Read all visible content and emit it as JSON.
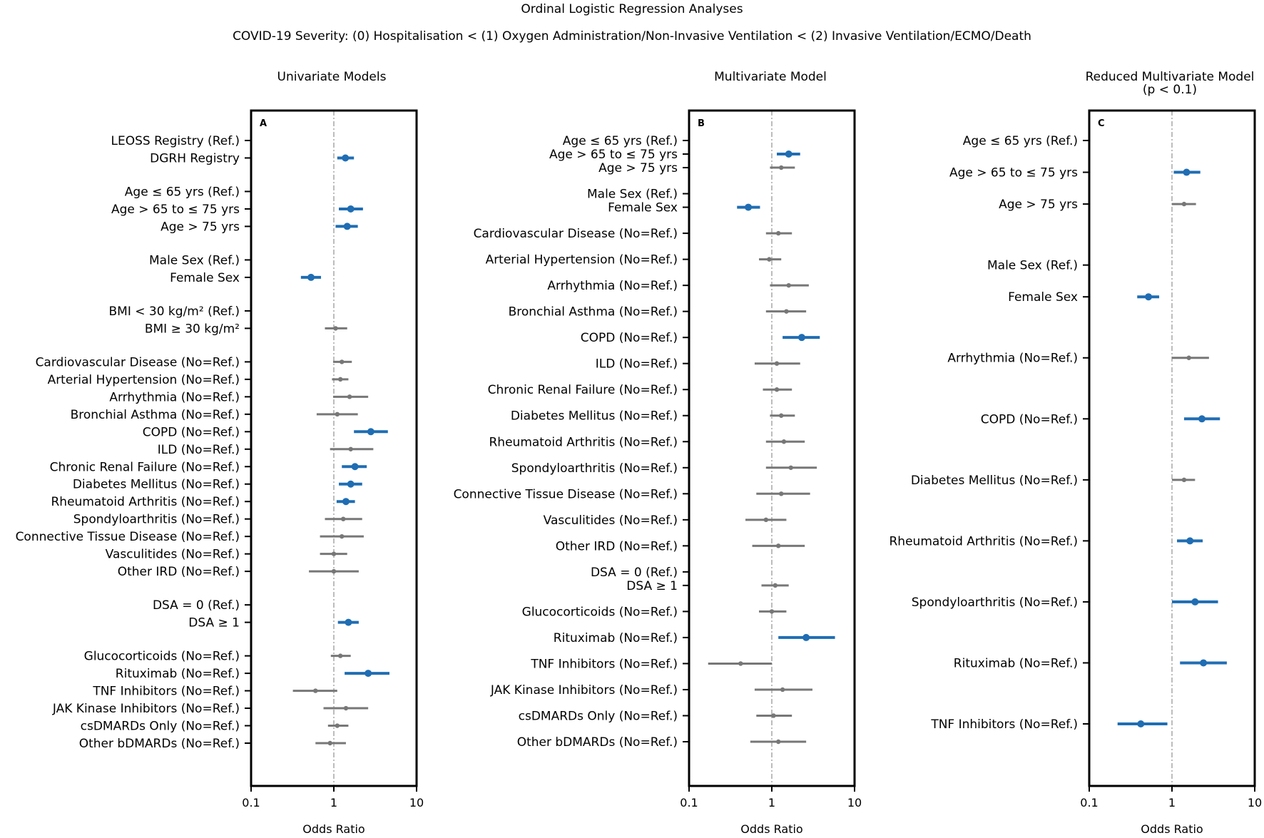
{
  "figure": {
    "title": "Ordinal Logistic Regression Analyses",
    "subtitle": "COVID-19 Severity:   (0) Hospitalisation < (1) Oxygen Administration/Non-Invasive Ventilation < (2) Invasive Ventilation/ECMO/Death"
  },
  "colors": {
    "significant": "#1f6db3",
    "nonsignificant": "#777777",
    "axis": "#000000",
    "refline": "#999999"
  },
  "chart_data": [
    {
      "type": "forest",
      "panel": "A",
      "title": "Univariate Models",
      "xlabel": "Odds Ratio",
      "xscale": "log",
      "xlim": [
        0.1,
        10
      ],
      "xticks": [
        "0.1",
        "1",
        "10"
      ],
      "reference_line": 1,
      "rows": [
        {
          "label": "LEOSS Registry (Ref.)",
          "ref": true
        },
        {
          "label": "DGRH Registry",
          "or": 1.38,
          "lo": 1.1,
          "hi": 1.75,
          "sig": true
        },
        {
          "gap": true
        },
        {
          "label": "Age ≤ 65 yrs (Ref.)",
          "ref": true
        },
        {
          "label": "Age > 65 to ≤ 75 yrs",
          "or": 1.6,
          "lo": 1.15,
          "hi": 2.25,
          "sig": true
        },
        {
          "label": "Age > 75 yrs",
          "or": 1.45,
          "lo": 1.05,
          "hi": 1.95,
          "sig": true
        },
        {
          "gap": true
        },
        {
          "label": "Male Sex (Ref.)",
          "ref": true
        },
        {
          "label": "Female Sex",
          "or": 0.53,
          "lo": 0.4,
          "hi": 0.7,
          "sig": true
        },
        {
          "gap": true
        },
        {
          "label": "BMI < 30 kg/m² (Ref.)",
          "ref": true
        },
        {
          "label": "BMI ≥ 30 kg/m²",
          "or": 1.05,
          "lo": 0.78,
          "hi": 1.45,
          "sig": false
        },
        {
          "gap": true
        },
        {
          "label": "Cardiovascular Disease (No=Ref.)",
          "or": 1.25,
          "lo": 0.98,
          "hi": 1.65,
          "sig": false
        },
        {
          "label": "Arterial Hypertension (No=Ref.)",
          "or": 1.2,
          "lo": 0.95,
          "hi": 1.5,
          "sig": false
        },
        {
          "label": "Arrhythmia (No=Ref.)",
          "or": 1.55,
          "lo": 0.98,
          "hi": 2.6,
          "sig": false
        },
        {
          "label": "Bronchial Asthma (No=Ref.)",
          "or": 1.1,
          "lo": 0.62,
          "hi": 1.95,
          "sig": false
        },
        {
          "label": "COPD (No=Ref.)",
          "or": 2.8,
          "lo": 1.75,
          "hi": 4.5,
          "sig": true
        },
        {
          "label": "ILD (No=Ref.)",
          "or": 1.6,
          "lo": 0.9,
          "hi": 3.0,
          "sig": false
        },
        {
          "label": "Chronic Renal Failure (No=Ref.)",
          "or": 1.8,
          "lo": 1.25,
          "hi": 2.5,
          "sig": true
        },
        {
          "label": "Diabetes Mellitus (No=Ref.)",
          "or": 1.6,
          "lo": 1.15,
          "hi": 2.2,
          "sig": true
        },
        {
          "label": "Rheumatoid Arthritis (No=Ref.)",
          "or": 1.4,
          "lo": 1.08,
          "hi": 1.8,
          "sig": true
        },
        {
          "label": "Spondyloarthritis (No=Ref.)",
          "or": 1.3,
          "lo": 0.78,
          "hi": 2.2,
          "sig": false
        },
        {
          "label": "Connective Tissue Disease (No=Ref.)",
          "or": 1.25,
          "lo": 0.68,
          "hi": 2.3,
          "sig": false
        },
        {
          "label": "Vasculitides (No=Ref.)",
          "or": 1.0,
          "lo": 0.68,
          "hi": 1.45,
          "sig": false
        },
        {
          "label": "Other IRD (No=Ref.)",
          "or": 1.0,
          "lo": 0.5,
          "hi": 2.0,
          "sig": false
        },
        {
          "gap": true
        },
        {
          "label": "DSA = 0 (Ref.)",
          "ref": true
        },
        {
          "label": "DSA ≥ 1",
          "or": 1.5,
          "lo": 1.12,
          "hi": 2.0,
          "sig": true
        },
        {
          "gap": true
        },
        {
          "label": "Glucocorticoids (No=Ref.)",
          "or": 1.2,
          "lo": 0.92,
          "hi": 1.6,
          "sig": false
        },
        {
          "label": "Rituximab (No=Ref.)",
          "or": 2.6,
          "lo": 1.35,
          "hi": 4.7,
          "sig": true
        },
        {
          "label": "TNF Inhibitors (No=Ref.)",
          "or": 0.6,
          "lo": 0.32,
          "hi": 1.1,
          "sig": false
        },
        {
          "label": "JAK Kinase Inhibitors (No=Ref.)",
          "or": 1.4,
          "lo": 0.75,
          "hi": 2.6,
          "sig": false
        },
        {
          "label": "csDMARDs Only (No=Ref.)",
          "or": 1.1,
          "lo": 0.85,
          "hi": 1.5,
          "sig": false
        },
        {
          "label": "Other bDMARDs (No=Ref.)",
          "or": 0.9,
          "lo": 0.6,
          "hi": 1.4,
          "sig": false
        }
      ]
    },
    {
      "type": "forest",
      "panel": "B",
      "title": "Multivariate Model",
      "xlabel": "Odds Ratio",
      "xscale": "log",
      "xlim": [
        0.1,
        10
      ],
      "xticks": [
        "0.1",
        "1",
        "10"
      ],
      "reference_line": 1,
      "rows": [
        {
          "label": "Age ≤ 65 yrs (Ref.)",
          "ref": true
        },
        {
          "label": "Age > 65 to ≤ 75 yrs",
          "or": 1.6,
          "lo": 1.15,
          "hi": 2.2,
          "sig": true
        },
        {
          "label": "Age > 75 yrs",
          "or": 1.3,
          "lo": 0.95,
          "hi": 1.9,
          "sig": false
        },
        {
          "gap": true
        },
        {
          "label": "Male Sex (Ref.)",
          "ref": true
        },
        {
          "label": "Female Sex",
          "or": 0.52,
          "lo": 0.38,
          "hi": 0.72,
          "sig": true
        },
        {
          "gap": true
        },
        {
          "label": "Cardiovascular Disease (No=Ref.)",
          "or": 1.2,
          "lo": 0.85,
          "hi": 1.75,
          "sig": false
        },
        {
          "gap": true
        },
        {
          "label": "Arterial Hypertension (No=Ref.)",
          "or": 0.93,
          "lo": 0.7,
          "hi": 1.3,
          "sig": false
        },
        {
          "gap": true
        },
        {
          "label": "Arrhythmia (No=Ref.)",
          "or": 1.6,
          "lo": 0.95,
          "hi": 2.8,
          "sig": false
        },
        {
          "gap": true
        },
        {
          "label": "Bronchial Asthma (No=Ref.)",
          "or": 1.5,
          "lo": 0.85,
          "hi": 2.6,
          "sig": false
        },
        {
          "gap": true
        },
        {
          "label": "COPD (No=Ref.)",
          "or": 2.3,
          "lo": 1.35,
          "hi": 3.8,
          "sig": true
        },
        {
          "gap": true
        },
        {
          "label": "ILD (No=Ref.)",
          "or": 1.15,
          "lo": 0.62,
          "hi": 2.2,
          "sig": false
        },
        {
          "gap": true
        },
        {
          "label": "Chronic Renal Failure (No=Ref.)",
          "or": 1.15,
          "lo": 0.78,
          "hi": 1.75,
          "sig": false
        },
        {
          "gap": true
        },
        {
          "label": "Diabetes Mellitus (No=Ref.)",
          "or": 1.3,
          "lo": 0.95,
          "hi": 1.9,
          "sig": false
        },
        {
          "gap": true
        },
        {
          "label": "Rheumatoid Arthritis (No=Ref.)",
          "or": 1.4,
          "lo": 0.85,
          "hi": 2.5,
          "sig": false
        },
        {
          "gap": true
        },
        {
          "label": "Spondyloarthritis (No=Ref.)",
          "or": 1.7,
          "lo": 0.85,
          "hi": 3.5,
          "sig": false
        },
        {
          "gap": true
        },
        {
          "label": "Connective Tissue Disease (No=Ref.)",
          "or": 1.3,
          "lo": 0.65,
          "hi": 2.9,
          "sig": false
        },
        {
          "gap": true
        },
        {
          "label": "Vasculitides (No=Ref.)",
          "or": 0.85,
          "lo": 0.48,
          "hi": 1.5,
          "sig": false
        },
        {
          "gap": true
        },
        {
          "label": "Other IRD (No=Ref.)",
          "or": 1.2,
          "lo": 0.58,
          "hi": 2.5,
          "sig": false
        },
        {
          "gap": true
        },
        {
          "label": "DSA = 0 (Ref.)",
          "ref": true
        },
        {
          "label": "DSA ≥ 1",
          "or": 1.1,
          "lo": 0.75,
          "hi": 1.6,
          "sig": false
        },
        {
          "gap": true
        },
        {
          "label": "Glucocorticoids (No=Ref.)",
          "or": 1.0,
          "lo": 0.7,
          "hi": 1.5,
          "sig": false
        },
        {
          "gap": true
        },
        {
          "label": "Rituximab (No=Ref.)",
          "or": 2.6,
          "lo": 1.2,
          "hi": 5.8,
          "sig": true
        },
        {
          "gap": true
        },
        {
          "label": "TNF Inhibitors (No=Ref.)",
          "or": 0.42,
          "lo": 0.17,
          "hi": 1.0,
          "sig": false
        },
        {
          "gap": true
        },
        {
          "label": "JAK Kinase Inhibitors (No=Ref.)",
          "or": 1.35,
          "lo": 0.62,
          "hi": 3.1,
          "sig": false
        },
        {
          "gap": true
        },
        {
          "label": "csDMARDs Only (No=Ref.)",
          "or": 1.05,
          "lo": 0.65,
          "hi": 1.75,
          "sig": false
        },
        {
          "gap": true
        },
        {
          "label": "Other bDMARDs (No=Ref.)",
          "or": 1.2,
          "lo": 0.55,
          "hi": 2.6,
          "sig": false
        }
      ]
    },
    {
      "type": "forest",
      "panel": "C",
      "title": "Reduced Multivariate Model",
      "title_line2": "(p < 0.1)",
      "xlabel": "Odds Ratio",
      "xscale": "log",
      "xlim": [
        0.1,
        10
      ],
      "xticks": [
        "0.1",
        "1",
        "10"
      ],
      "reference_line": 1,
      "rows": [
        {
          "label": "Age ≤ 65 yrs (Ref.)",
          "ref": true
        },
        {
          "label": "Age > 65 to ≤ 75 yrs",
          "or": 1.5,
          "lo": 1.05,
          "hi": 2.2,
          "sig": true
        },
        {
          "label": "Age > 75 yrs",
          "or": 1.4,
          "lo": 1.0,
          "hi": 1.95,
          "sig": false
        },
        {
          "gap": true
        },
        {
          "label": "Male Sex (Ref.)",
          "ref": true
        },
        {
          "label": "Female Sex",
          "or": 0.52,
          "lo": 0.38,
          "hi": 0.7,
          "sig": true
        },
        {
          "gap": true
        },
        {
          "label": "Arrhythmia (No=Ref.)",
          "or": 1.6,
          "lo": 1.0,
          "hi": 2.8,
          "sig": false
        },
        {
          "gap": true
        },
        {
          "label": "COPD (No=Ref.)",
          "or": 2.3,
          "lo": 1.4,
          "hi": 3.8,
          "sig": true
        },
        {
          "gap": true
        },
        {
          "label": "Diabetes Mellitus (No=Ref.)",
          "or": 1.4,
          "lo": 1.0,
          "hi": 1.9,
          "sig": false
        },
        {
          "gap": true
        },
        {
          "label": "Rheumatoid Arthritis (No=Ref.)",
          "or": 1.65,
          "lo": 1.15,
          "hi": 2.35,
          "sig": true
        },
        {
          "gap": true
        },
        {
          "label": "Spondyloarthritis (No=Ref.)",
          "or": 1.9,
          "lo": 1.0,
          "hi": 3.6,
          "sig": true
        },
        {
          "gap": true
        },
        {
          "label": "Rituximab (No=Ref.)",
          "or": 2.4,
          "lo": 1.25,
          "hi": 4.6,
          "sig": true
        },
        {
          "gap": true
        },
        {
          "label": "TNF Inhibitors (No=Ref.)",
          "or": 0.42,
          "lo": 0.22,
          "hi": 0.88,
          "sig": true
        }
      ]
    }
  ]
}
